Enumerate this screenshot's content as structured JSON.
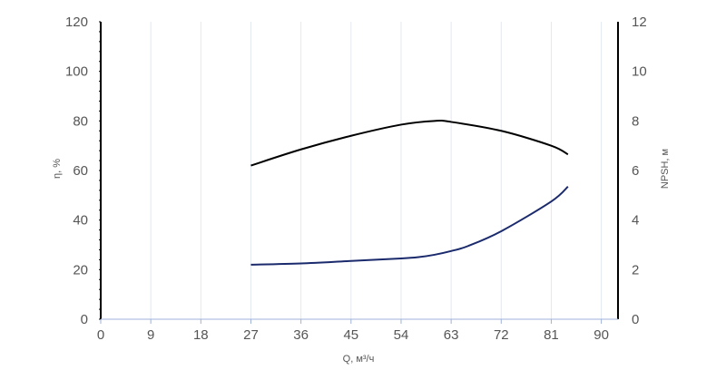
{
  "chart_data": {
    "type": "line",
    "xlabel": "Q, м³/ч",
    "ylabel_left": "η, %",
    "ylabel_right": "NPSH, м",
    "xlim": [
      0,
      93
    ],
    "ylim_left": [
      0,
      120
    ],
    "ylim_right": [
      0,
      12
    ],
    "x_ticks": [
      "0",
      "9",
      "18",
      "27",
      "36",
      "45",
      "54",
      "63",
      "72",
      "81",
      "90"
    ],
    "y_left_ticks": [
      "0",
      "20",
      "40",
      "60",
      "80",
      "100",
      "120"
    ],
    "y_right_ticks": [
      "0",
      "2",
      "4",
      "6",
      "8",
      "10",
      "12"
    ],
    "grid": "vertical",
    "series": [
      {
        "axis": "left",
        "color": "#000000",
        "x": [
          27,
          36,
          45,
          54,
          60,
          63,
          72,
          81,
          84
        ],
        "y": [
          62,
          68.5,
          74,
          78.5,
          80,
          79.6,
          76,
          70,
          66.5
        ]
      },
      {
        "axis": "right",
        "color": "#1a2a6c",
        "x": [
          27,
          36,
          45,
          54,
          57,
          60,
          63,
          66,
          72,
          81,
          84
        ],
        "y": [
          2.2,
          2.25,
          2.35,
          2.45,
          2.5,
          2.6,
          2.75,
          2.95,
          3.55,
          4.75,
          5.35
        ]
      }
    ]
  }
}
